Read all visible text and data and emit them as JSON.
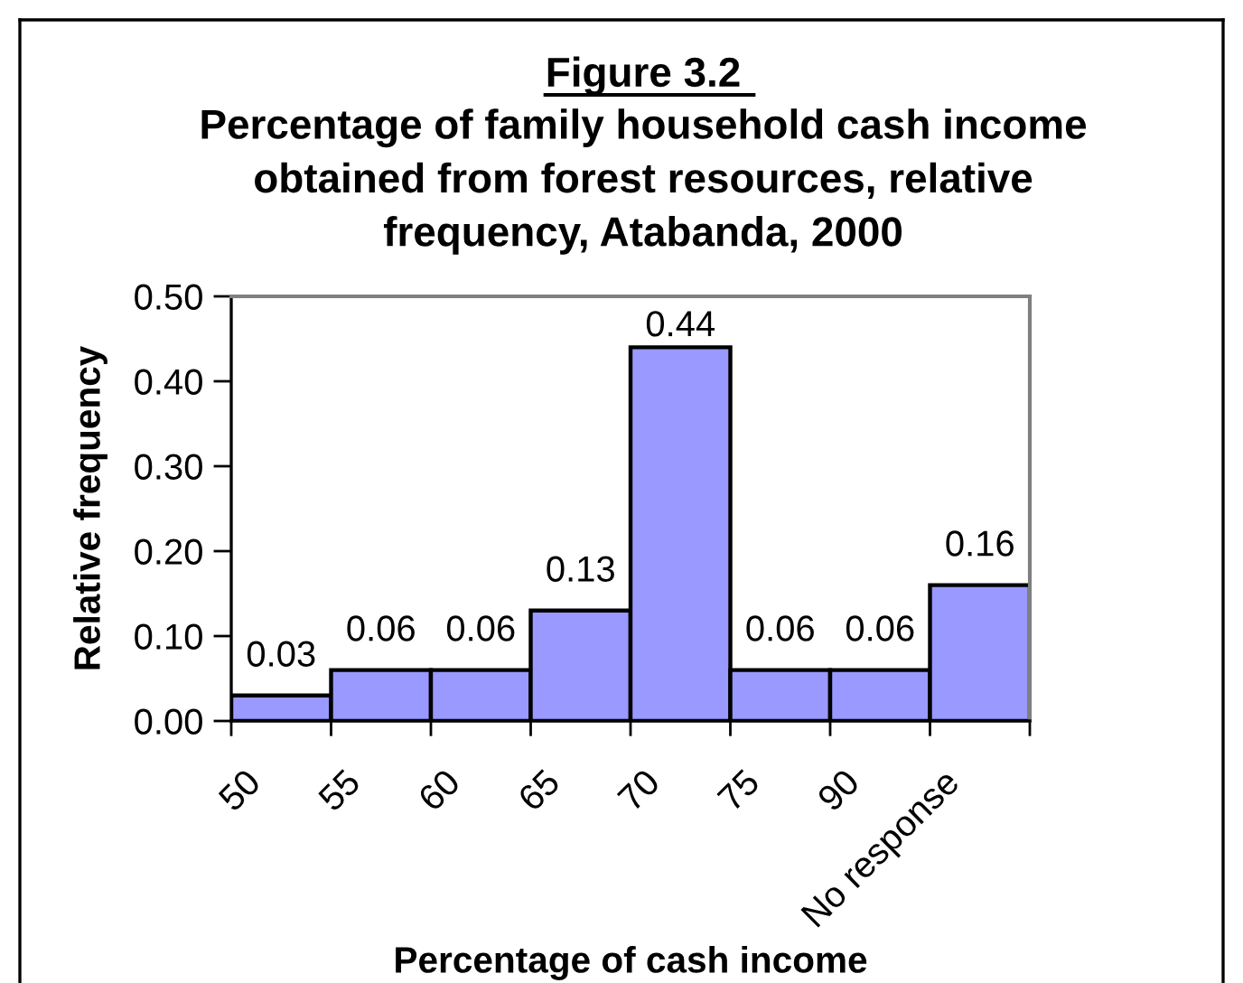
{
  "chart_data": {
    "type": "bar",
    "title": "Figure 3.2",
    "subtitle": "Percentage of family household cash income\nobtained from forest resources, relative\nfrequency, Atabanda, 2000",
    "xlabel": "Percentage of cash income",
    "ylabel": "Relative frequency",
    "categories": [
      "50",
      "55",
      "60",
      "65",
      "70",
      "75",
      "90",
      "No response"
    ],
    "values": [
      0.03,
      0.06,
      0.06,
      0.13,
      0.44,
      0.06,
      0.06,
      0.16
    ],
    "color": "#9999ff",
    "ylim": [
      0,
      0.5
    ],
    "yticks": [
      {
        "value": 0,
        "label": "0.00"
      },
      {
        "value": 0.1,
        "label": "0.10"
      },
      {
        "value": 0.2,
        "label": "0.20"
      },
      {
        "value": 0.3,
        "label": "0.30"
      },
      {
        "value": 0.4,
        "label": "0.40"
      },
      {
        "value": 0.5,
        "label": "0.50"
      }
    ],
    "data_labels": true,
    "grid": false
  }
}
